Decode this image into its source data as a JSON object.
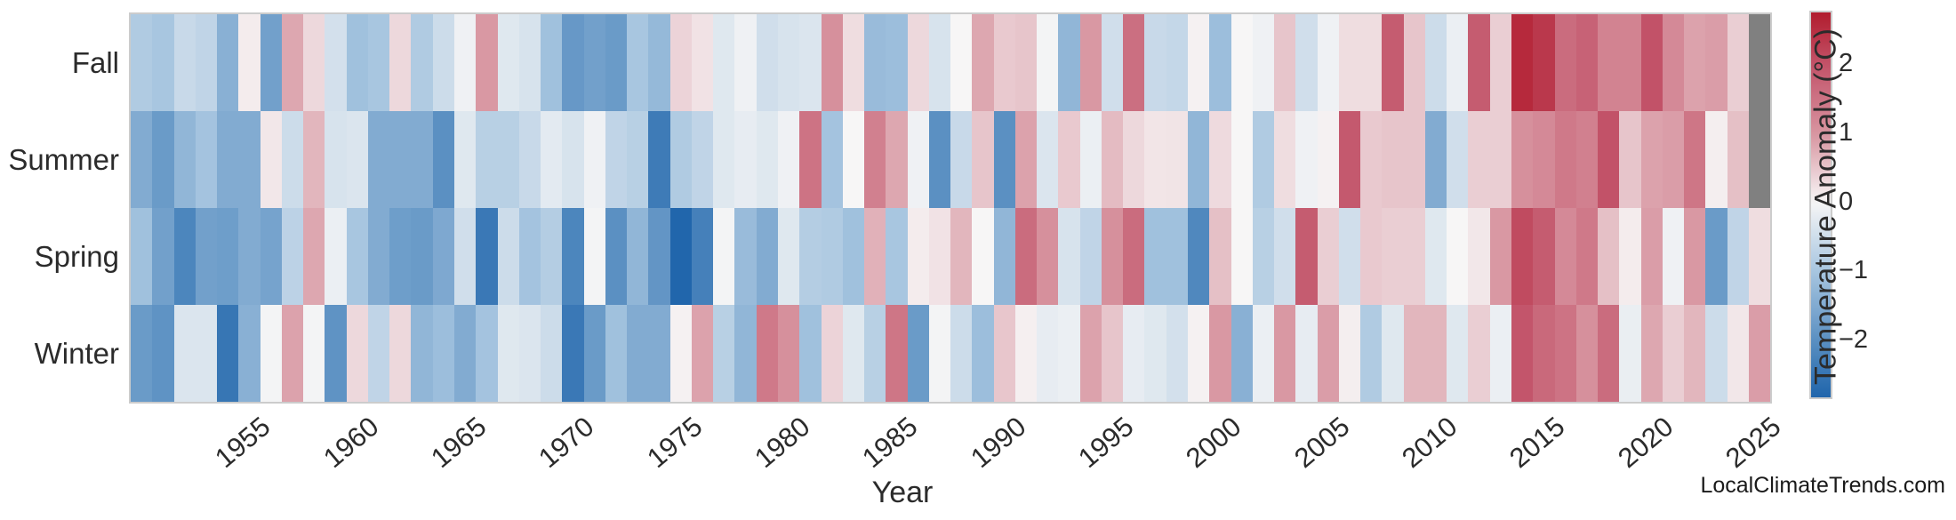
{
  "watermark": "LocalClimateTrends.com",
  "chart_data": {
    "type": "heatmap",
    "title": "",
    "xlabel": "Year",
    "rows": [
      "Fall",
      "Summer",
      "Spring",
      "Winter"
    ],
    "years": [
      1950,
      1951,
      1952,
      1953,
      1954,
      1955,
      1956,
      1957,
      1958,
      1959,
      1960,
      1961,
      1962,
      1963,
      1964,
      1965,
      1966,
      1967,
      1968,
      1969,
      1970,
      1971,
      1972,
      1973,
      1974,
      1975,
      1976,
      1977,
      1978,
      1979,
      1980,
      1981,
      1982,
      1983,
      1984,
      1985,
      1986,
      1987,
      1988,
      1989,
      1990,
      1991,
      1992,
      1993,
      1994,
      1995,
      1996,
      1997,
      1998,
      1999,
      2000,
      2001,
      2002,
      2003,
      2004,
      2005,
      2006,
      2007,
      2008,
      2009,
      2010,
      2011,
      2012,
      2013,
      2014,
      2015,
      2016,
      2017,
      2018,
      2019,
      2020,
      2021,
      2022,
      2023,
      2024,
      2025
    ],
    "x_ticks": [
      1955,
      1960,
      1965,
      1970,
      1975,
      1980,
      1985,
      1990,
      1995,
      2000,
      2005,
      2010,
      2015,
      2020,
      2025
    ],
    "series": [
      {
        "name": "Fall",
        "values": [
          -0.9,
          -1.0,
          -0.6,
          -0.7,
          -1.4,
          0.1,
          -1.7,
          0.8,
          0.3,
          -0.45,
          -1.1,
          -1.0,
          0.3,
          -0.9,
          -0.55,
          -0.1,
          0.95,
          -0.3,
          -0.4,
          -1.1,
          -1.85,
          -1.7,
          -1.8,
          -1.0,
          -1.25,
          0.35,
          0.2,
          -0.3,
          -0.1,
          -0.5,
          -0.4,
          -0.35,
          1.05,
          0.25,
          -1.2,
          -1.15,
          0.3,
          -0.4,
          0.0,
          0.8,
          0.45,
          0.5,
          -0.05,
          -1.3,
          0.95,
          -0.5,
          1.55,
          -0.6,
          -0.65,
          0.05,
          -1.15,
          0.0,
          -0.1,
          0.5,
          -0.5,
          -0.1,
          0.25,
          0.25,
          1.85,
          0.5,
          -0.55,
          -0.15,
          1.85,
          0.4,
          2.55,
          2.35,
          1.6,
          1.75,
          1.25,
          1.25,
          2.0,
          1.15,
          0.85,
          0.9,
          0.4,
          null
        ]
      },
      {
        "name": "Summer",
        "values": [
          -1.5,
          -1.8,
          -1.3,
          -1.05,
          -1.5,
          -1.5,
          0.15,
          -0.55,
          0.65,
          -0.4,
          -0.35,
          -1.5,
          -1.5,
          -1.5,
          -2.0,
          -0.3,
          -0.8,
          -0.8,
          -0.6,
          -0.25,
          -0.4,
          -0.1,
          -0.7,
          -0.8,
          -2.4,
          -0.9,
          -0.7,
          -0.3,
          -0.2,
          -0.3,
          -0.1,
          1.5,
          -1.05,
          0.0,
          1.3,
          0.8,
          -0.1,
          -2.0,
          -0.6,
          0.5,
          -2.0,
          0.85,
          -0.35,
          0.45,
          -0.15,
          0.6,
          0.3,
          0.17,
          0.18,
          -1.3,
          0.28,
          0.0,
          -0.9,
          0.25,
          -0.1,
          0.05,
          1.9,
          0.45,
          0.5,
          0.5,
          -1.5,
          -0.5,
          0.4,
          0.4,
          1.05,
          1.15,
          1.4,
          1.3,
          2.0,
          0.5,
          0.85,
          0.9,
          1.45,
          0.08,
          0.55,
          null
        ]
      },
      {
        "name": "Spring",
        "values": [
          -1.1,
          -1.7,
          -2.2,
          -1.7,
          -1.75,
          -1.5,
          -1.65,
          -0.75,
          0.8,
          -0.15,
          -1.0,
          -1.5,
          -1.75,
          -1.8,
          -1.55,
          -0.5,
          -2.45,
          -0.55,
          -1.05,
          -0.85,
          -2.2,
          -0.05,
          -2.0,
          -1.3,
          -1.9,
          -2.8,
          -2.3,
          -0.05,
          -1.2,
          -1.5,
          -0.3,
          -0.85,
          -0.9,
          -1.1,
          0.7,
          -1.0,
          0.1,
          0.2,
          0.65,
          0.0,
          -1.3,
          1.6,
          1.05,
          -0.4,
          -0.7,
          1.05,
          1.6,
          -1.1,
          -1.1,
          -2.15,
          0.55,
          0.0,
          -0.8,
          -0.5,
          1.85,
          0.4,
          -0.5,
          0.45,
          0.4,
          0.4,
          -0.3,
          0.0,
          0.15,
          0.95,
          2.1,
          1.85,
          1.15,
          1.4,
          0.55,
          0.1,
          0.9,
          -0.1,
          0.95,
          -1.8,
          -0.7,
          0.25
        ]
      },
      {
        "name": "Winter",
        "values": [
          -1.8,
          -1.95,
          -0.35,
          -0.35,
          -2.5,
          -1.4,
          -0.05,
          0.85,
          -0.05,
          -1.95,
          0.3,
          -0.7,
          0.3,
          -1.3,
          -1.15,
          -1.5,
          -1.05,
          -0.3,
          -0.35,
          -0.55,
          -2.45,
          -1.8,
          -1.1,
          -1.5,
          -1.5,
          0.05,
          0.85,
          -0.8,
          -1.3,
          1.4,
          1.05,
          -1.1,
          0.35,
          -0.3,
          -0.8,
          1.45,
          -1.8,
          -0.05,
          -0.55,
          -1.15,
          0.48,
          0.07,
          -0.2,
          -0.15,
          0.85,
          0.5,
          -0.2,
          -0.3,
          -0.45,
          0.05,
          0.95,
          -1.4,
          -0.15,
          0.95,
          -0.2,
          0.9,
          0.08,
          -0.9,
          -0.3,
          0.65,
          0.65,
          -0.3,
          0.4,
          -0.15,
          1.95,
          1.65,
          1.5,
          1.05,
          1.6,
          -0.17,
          0.8,
          0.4,
          0.65,
          -0.55,
          0.15,
          0.9
        ]
      }
    ],
    "colorbar": {
      "label": "Temperature Anomaly (°C)",
      "ticks": [
        2,
        1,
        0,
        -1,
        -2
      ],
      "vmax": 2.74,
      "vmin": -2.83,
      "missing_color": "#808080",
      "anchors": [
        [
          -2.8,
          "#2166ac"
        ],
        [
          -2.0,
          "#5b90c2"
        ],
        [
          -1.0,
          "#a8c6e0"
        ],
        [
          0.0,
          "#f7f6f6"
        ],
        [
          1.0,
          "#d7939f"
        ],
        [
          2.0,
          "#c25268"
        ],
        [
          2.8,
          "#b01728"
        ]
      ]
    },
    "legend_position": "right",
    "grid": false
  }
}
